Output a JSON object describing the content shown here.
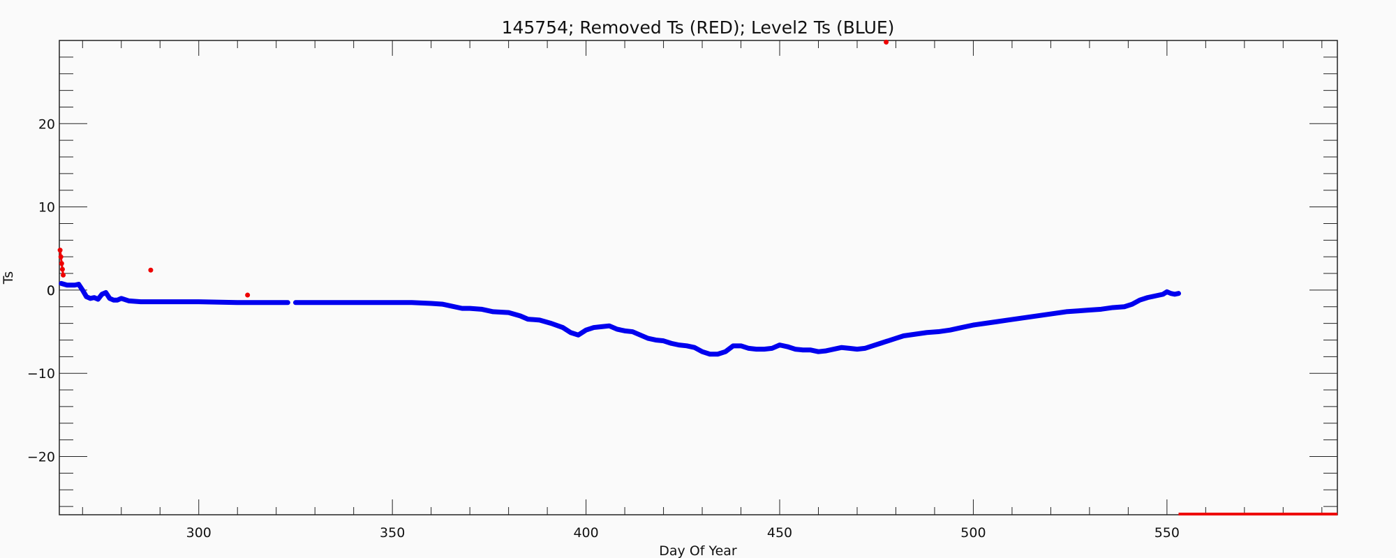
{
  "chart_data": {
    "type": "scatter",
    "title": "145754; Removed Ts (RED); Level2 Ts (BLUE)",
    "xlabel": "Day Of Year",
    "ylabel": "Ts",
    "xlim": [
      264,
      594
    ],
    "ylim": [
      -27,
      30
    ],
    "xticks": [
      300,
      350,
      400,
      450,
      500,
      550
    ],
    "yticks": [
      -20,
      -10,
      0,
      10,
      20
    ],
    "grid": false,
    "series": [
      {
        "color": "#0000ee",
        "points": [
          [
            264.5,
            0.8
          ],
          [
            266,
            0.6
          ],
          [
            268,
            0.6
          ],
          [
            269,
            0.7
          ],
          [
            270,
            0.0
          ],
          [
            271,
            -0.8
          ],
          [
            272,
            -1.0
          ],
          [
            273,
            -0.9
          ],
          [
            274,
            -1.1
          ],
          [
            275,
            -0.5
          ],
          [
            276,
            -0.3
          ],
          [
            277,
            -1.0
          ],
          [
            278,
            -1.2
          ],
          [
            279,
            -1.2
          ],
          [
            280,
            -1.0
          ],
          [
            282,
            -1.3
          ],
          [
            285,
            -1.4
          ],
          [
            290,
            -1.4
          ],
          [
            300,
            -1.4
          ],
          [
            310,
            -1.5
          ],
          [
            320,
            -1.5
          ],
          [
            323,
            -1.5
          ],
          [
            325,
            -1.5
          ],
          [
            330,
            -1.5
          ],
          [
            340,
            -1.5
          ],
          [
            350,
            -1.5
          ],
          [
            355,
            -1.5
          ],
          [
            360,
            -1.6
          ],
          [
            363,
            -1.7
          ],
          [
            365,
            -1.9
          ],
          [
            368,
            -2.2
          ],
          [
            370,
            -2.2
          ],
          [
            373,
            -2.3
          ],
          [
            376,
            -2.6
          ],
          [
            380,
            -2.7
          ],
          [
            383,
            -3.1
          ],
          [
            385,
            -3.5
          ],
          [
            388,
            -3.6
          ],
          [
            391,
            -4.0
          ],
          [
            394,
            -4.5
          ],
          [
            396,
            -5.1
          ],
          [
            398,
            -5.4
          ],
          [
            400,
            -4.8
          ],
          [
            402,
            -4.5
          ],
          [
            404,
            -4.4
          ],
          [
            406,
            -4.3
          ],
          [
            408,
            -4.7
          ],
          [
            410,
            -4.9
          ],
          [
            412,
            -5.0
          ],
          [
            414,
            -5.4
          ],
          [
            416,
            -5.8
          ],
          [
            418,
            -6.0
          ],
          [
            420,
            -6.1
          ],
          [
            422,
            -6.4
          ],
          [
            424,
            -6.6
          ],
          [
            426,
            -6.7
          ],
          [
            428,
            -6.9
          ],
          [
            430,
            -7.4
          ],
          [
            432,
            -7.7
          ],
          [
            434,
            -7.7
          ],
          [
            436,
            -7.4
          ],
          [
            438,
            -6.7
          ],
          [
            440,
            -6.7
          ],
          [
            442,
            -7.0
          ],
          [
            444,
            -7.1
          ],
          [
            446,
            -7.1
          ],
          [
            448,
            -7.0
          ],
          [
            450,
            -6.6
          ],
          [
            452,
            -6.8
          ],
          [
            454,
            -7.1
          ],
          [
            456,
            -7.2
          ],
          [
            458,
            -7.2
          ],
          [
            460,
            -7.4
          ],
          [
            462,
            -7.3
          ],
          [
            464,
            -7.1
          ],
          [
            466,
            -6.9
          ],
          [
            468,
            -7.0
          ],
          [
            470,
            -7.1
          ],
          [
            472,
            -7.0
          ],
          [
            474,
            -6.7
          ],
          [
            476,
            -6.4
          ],
          [
            478,
            -6.1
          ],
          [
            480,
            -5.8
          ],
          [
            482,
            -5.5
          ],
          [
            485,
            -5.3
          ],
          [
            488,
            -5.1
          ],
          [
            491,
            -5.0
          ],
          [
            494,
            -4.8
          ],
          [
            497,
            -4.5
          ],
          [
            500,
            -4.2
          ],
          [
            503,
            -4.0
          ],
          [
            506,
            -3.8
          ],
          [
            509,
            -3.6
          ],
          [
            512,
            -3.4
          ],
          [
            515,
            -3.2
          ],
          [
            518,
            -3.0
          ],
          [
            521,
            -2.8
          ],
          [
            524,
            -2.6
          ],
          [
            527,
            -2.5
          ],
          [
            530,
            -2.4
          ],
          [
            533,
            -2.3
          ],
          [
            536,
            -2.1
          ],
          [
            539,
            -2.0
          ],
          [
            541,
            -1.7
          ],
          [
            543,
            -1.2
          ],
          [
            545,
            -0.9
          ],
          [
            547,
            -0.7
          ],
          [
            549,
            -0.5
          ],
          [
            550,
            -0.2
          ],
          [
            551,
            -0.4
          ],
          [
            552,
            -0.5
          ],
          [
            553,
            -0.4
          ]
        ]
      },
      {
        "color": "#ee0000",
        "points": [
          [
            264.2,
            4.8
          ],
          [
            264.4,
            4.0
          ],
          [
            264.6,
            3.2
          ],
          [
            264.8,
            2.5
          ],
          [
            265.0,
            1.8
          ],
          [
            287.6,
            2.4
          ],
          [
            312.6,
            -0.6
          ],
          [
            477.5,
            29.8
          ],
          [
            553,
            -27
          ],
          [
            560,
            -27
          ],
          [
            570,
            -27
          ],
          [
            580,
            -27
          ],
          [
            590,
            -27
          ],
          [
            594,
            -27
          ]
        ]
      }
    ]
  }
}
